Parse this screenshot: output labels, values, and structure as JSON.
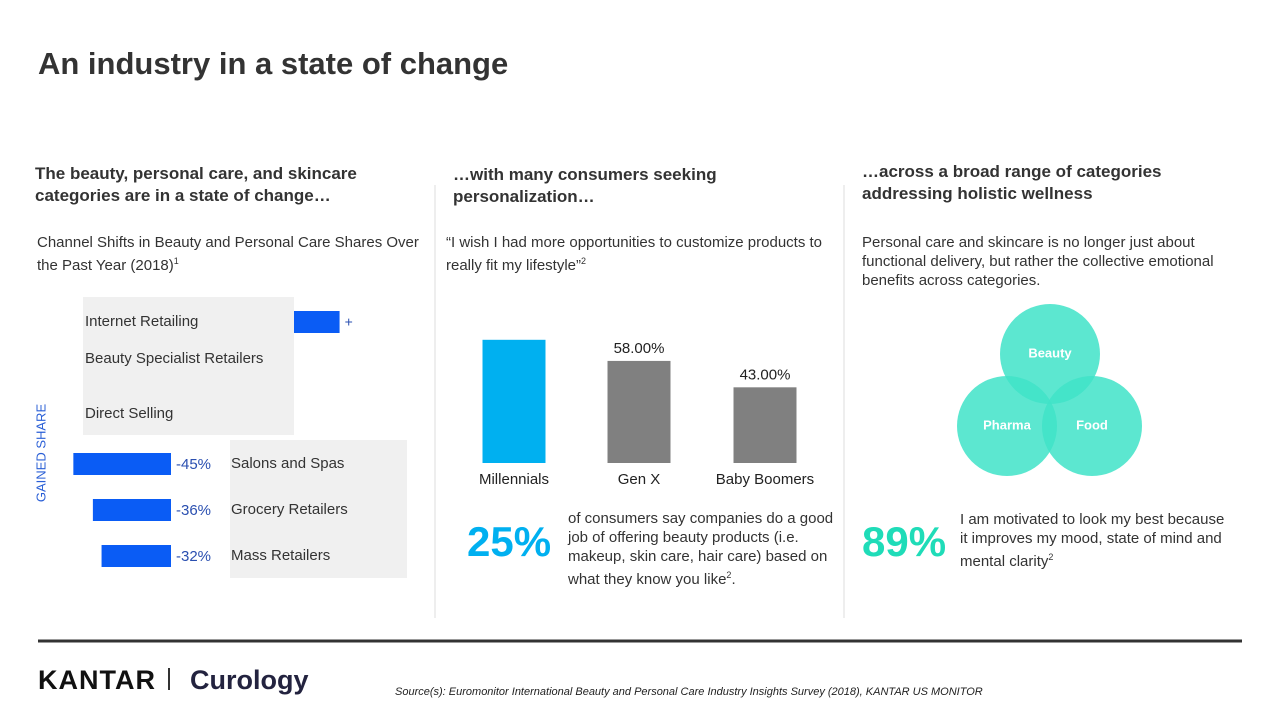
{
  "title": "An industry in a state of change",
  "columns": [
    {
      "heading": "The beauty, personal care, and skincare categories are in a state of change…",
      "subheading": "Channel Shifts in Beauty and Personal Care Shares Over the Past Year (2018)",
      "subheading_sup": "1"
    },
    {
      "heading": "…with many consumers seeking personalization…",
      "subheading": "“I wish I had more opportunities to customize products to really fit my lifestyle”",
      "subheading_sup": "2",
      "stat": "25%",
      "stat_text": "of consumers say companies do a good job of offering beauty products (i.e. makeup, skin care, hair care) based on what they know you like",
      "stat_sup": "2",
      "stat_end": "."
    },
    {
      "heading": "…across a broad range of categories addressing holistic wellness",
      "subheading": "Personal care and skincare is no longer just about functional delivery, but rather the collective emotional benefits across categories.",
      "venn": [
        "Beauty",
        "Pharma",
        "Food"
      ],
      "stat": "89%",
      "stat_text": "I am motivated to look my best because it improves my mood, state of mind and mental clarity",
      "stat_sup": "2"
    }
  ],
  "chart_data": [
    {
      "type": "hbar",
      "y_label": "GAINED SHARE",
      "categories": [
        "Internet Retailing",
        "Beauty Specialist Retailers",
        "Direct Selling",
        "Salons and Spas",
        "Grocery Retailers",
        "Mass Retailers"
      ],
      "values": [
        21,
        null,
        null,
        -45,
        -36,
        -32
      ],
      "value_labels": [
        "+",
        null,
        null,
        "-45%",
        "-36%",
        "-32%"
      ],
      "color": "#0a5cf5"
    },
    {
      "type": "bar",
      "categories": [
        "Millennials",
        "Gen X",
        "Baby Boomers"
      ],
      "values": [
        70,
        58,
        43
      ],
      "value_labels": [
        null,
        "58.00%",
        "43.00%"
      ],
      "colors": [
        "#00b0f0",
        "#808080",
        "#808080"
      ]
    }
  ],
  "footer": {
    "brand1": "KANTAR",
    "brand2": "Curology",
    "source": "Source(s): Euromonitor International Beauty and Personal Care Industry Insights Survey (2018),  KANTAR US MONITOR"
  }
}
